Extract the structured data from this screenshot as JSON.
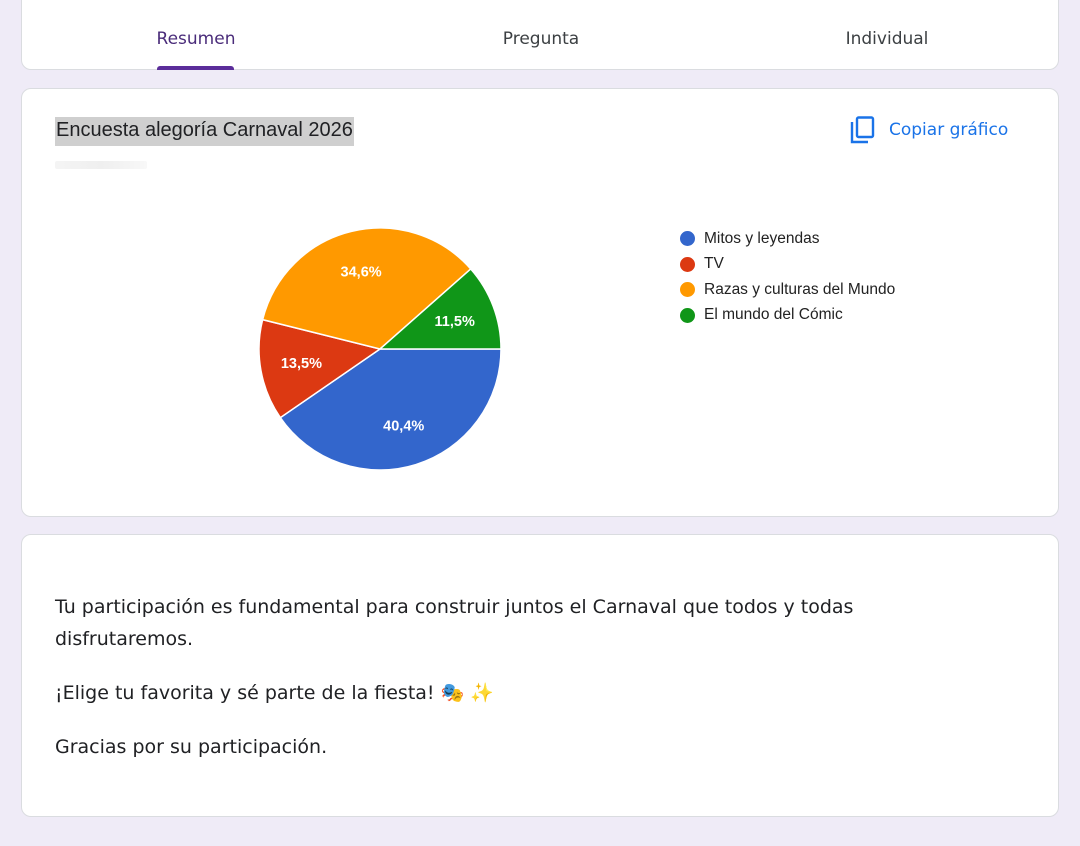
{
  "tabs": [
    {
      "label": "Resumen",
      "active": true
    },
    {
      "label": "Pregunta",
      "active": false
    },
    {
      "label": "Individual",
      "active": false
    }
  ],
  "chart_card": {
    "copy_label": "Copiar gráfico",
    "copy_icon": "copy-icon"
  },
  "chart_data": {
    "type": "pie",
    "title": "Encuesta alegoría Carnaval 2026",
    "legend_position": "right",
    "slices": [
      {
        "label": "Mitos y leyendas",
        "value": 40.4,
        "display": "40,4%",
        "color": "#3366cc"
      },
      {
        "label": "TV",
        "value": 13.5,
        "display": "13,5%",
        "color": "#dc3912"
      },
      {
        "label": "Razas y culturas del Mundo",
        "value": 34.6,
        "display": "34,6%",
        "color": "#ff9900"
      },
      {
        "label": "El mundo del Cómic",
        "value": 11.5,
        "display": "11,5%",
        "color": "#109618"
      }
    ]
  },
  "description": {
    "paragraphs": [
      "Tu participación es fundamental para construir juntos el Carnaval que todos y todas disfrutaremos.",
      "¡Elige tu favorita y sé parte de la fiesta!",
      "Gracias por su participación."
    ],
    "emoji": "🎭 ✨"
  },
  "colors": {
    "page_background": "#efebf7",
    "tab_indicator": "#5b2d9a",
    "accent_blue": "#1a73e8"
  }
}
